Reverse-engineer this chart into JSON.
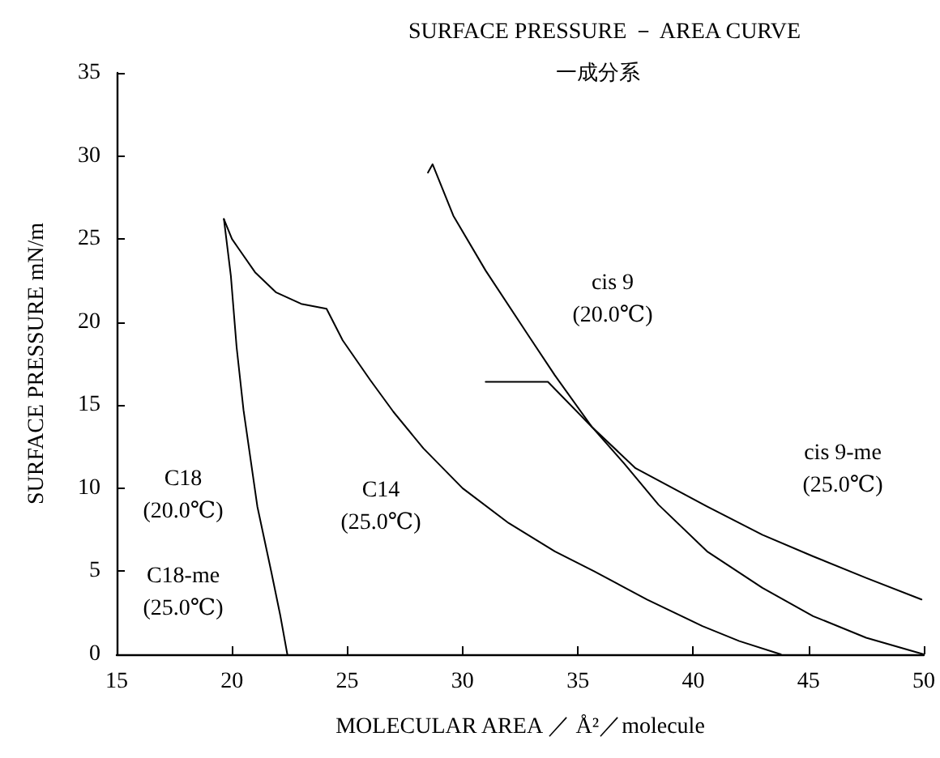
{
  "chart_data": {
    "type": "line",
    "title": "SURFACE PRESSURE － AREA CURVE",
    "subtitle": "一成分系",
    "xlabel": "MOLECULAR AREA ／ Å²／molecule",
    "ylabel": "SURFACE PRESSURE mN/m",
    "xlim": [
      15,
      50
    ],
    "xticks": [
      15,
      20,
      25,
      30,
      35,
      40,
      45,
      50
    ],
    "ylim": [
      0,
      35
    ],
    "yticks": [
      0,
      5,
      10,
      15,
      20,
      25,
      30,
      35
    ],
    "grid": false,
    "marker": "none",
    "line_style": "solid",
    "series": [
      {
        "color": "#000000",
        "x": [
          19.65,
          19.95,
          20.2,
          20.5,
          21.1,
          21.7,
          22.1,
          22.4
        ],
        "values": [
          26.2,
          22.8,
          18.5,
          14.7,
          8.9,
          5.0,
          2.3,
          0
        ]
      },
      {
        "color": "#000000",
        "x": [
          19.65,
          20.0,
          20.3,
          21.0,
          21.9,
          23.0,
          24.1,
          24.8,
          26.0,
          27.0,
          28.3,
          30.0,
          32.0,
          34.0,
          35.7,
          38.0,
          40.4,
          42.0,
          43.8
        ],
        "values": [
          26.2,
          25.0,
          24.4,
          23.0,
          21.8,
          21.1,
          20.8,
          18.9,
          16.5,
          14.6,
          12.4,
          10.0,
          7.9,
          6.2,
          5.0,
          3.3,
          1.7,
          0.8,
          0
        ]
      },
      {
        "color": "#000000",
        "x": [
          28.5,
          28.7,
          29.6,
          31.0,
          32.9,
          34.0,
          35.6,
          37.0,
          38.5,
          40.6,
          43.0,
          45.2,
          47.5,
          50
        ],
        "values": [
          29.0,
          29.5,
          26.4,
          23.1,
          19.1,
          16.8,
          13.7,
          11.5,
          9.0,
          6.2,
          4.0,
          2.3,
          1.0,
          0
        ]
      },
      {
        "color": "#000000",
        "x": [
          31.0,
          33.7,
          35.6,
          37.5,
          40.6,
          43.0,
          45.2,
          47.5,
          49.9
        ],
        "values": [
          16.4,
          16.4,
          13.7,
          11.2,
          8.9,
          7.2,
          5.9,
          4.6,
          3.3
        ]
      }
    ],
    "annotations": [
      "C18\n(20.0℃)",
      "C18-me\n(25.0℃)",
      "C14\n(25.0℃)",
      "cis 9\n(20.0℃)",
      "cis 9-me\n(25.0℃)"
    ]
  }
}
